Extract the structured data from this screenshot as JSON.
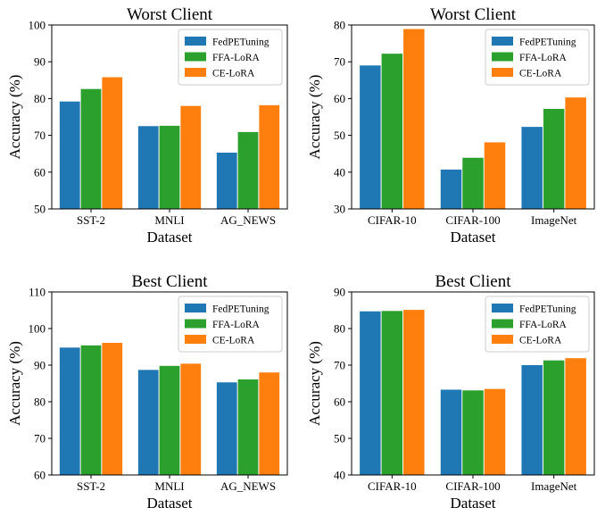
{
  "colors": {
    "FedPETuning": "#1f77b4",
    "FFA-LoRA": "#2ca02c",
    "CE-LoRA": "#ff7f0e"
  },
  "chart_data": [
    {
      "type": "bar",
      "title": "Worst Client",
      "xlabel": "Dataset",
      "ylabel": "Accuracy (%)",
      "categories": [
        "SST-2",
        "MNLI",
        "AG_NEWS"
      ],
      "ylim": [
        50,
        100
      ],
      "yticks": [
        50,
        60,
        70,
        80,
        90,
        100
      ],
      "legend": "top-right",
      "grid": false,
      "series": [
        {
          "name": "FedPETuning",
          "values": [
            79.2,
            72.5,
            65.3
          ]
        },
        {
          "name": "FFA-LoRA",
          "values": [
            82.6,
            72.6,
            70.9
          ]
        },
        {
          "name": "CE-LoRA",
          "values": [
            85.8,
            78.0,
            78.2
          ]
        }
      ]
    },
    {
      "type": "bar",
      "title": "Worst Client",
      "xlabel": "Dataset",
      "ylabel": "Accuracy (%)",
      "categories": [
        "CIFAR-10",
        "CIFAR-100",
        "ImageNet"
      ],
      "ylim": [
        30,
        80
      ],
      "yticks": [
        30,
        40,
        50,
        60,
        70,
        80
      ],
      "legend": "top-right",
      "grid": false,
      "series": [
        {
          "name": "FedPETuning",
          "values": [
            69.0,
            40.7,
            52.3
          ]
        },
        {
          "name": "FFA-LoRA",
          "values": [
            72.2,
            43.9,
            57.2
          ]
        },
        {
          "name": "CE-LoRA",
          "values": [
            78.9,
            48.1,
            60.3
          ]
        }
      ]
    },
    {
      "type": "bar",
      "title": "Best Client",
      "xlabel": "Dataset",
      "ylabel": "Accuracy (%)",
      "categories": [
        "SST-2",
        "MNLI",
        "AG_NEWS"
      ],
      "ylim": [
        60,
        110
      ],
      "yticks": [
        60,
        70,
        80,
        90,
        100,
        110
      ],
      "legend": "top-right",
      "grid": false,
      "series": [
        {
          "name": "FedPETuning",
          "values": [
            94.8,
            88.7,
            85.3
          ]
        },
        {
          "name": "FFA-LoRA",
          "values": [
            95.4,
            89.8,
            86.1
          ]
        },
        {
          "name": "CE-LoRA",
          "values": [
            96.1,
            90.4,
            88.0
          ]
        }
      ]
    },
    {
      "type": "bar",
      "title": "Best Client",
      "xlabel": "Dataset",
      "ylabel": "Accuracy (%)",
      "categories": [
        "CIFAR-10",
        "CIFAR-100",
        "ImageNet"
      ],
      "ylim": [
        40,
        90
      ],
      "yticks": [
        40,
        50,
        60,
        70,
        80,
        90
      ],
      "legend": "top-right",
      "grid": false,
      "series": [
        {
          "name": "FedPETuning",
          "values": [
            84.7,
            63.3,
            70.0
          ]
        },
        {
          "name": "FFA-LoRA",
          "values": [
            84.8,
            63.1,
            71.3
          ]
        },
        {
          "name": "CE-LoRA",
          "values": [
            85.1,
            63.5,
            71.9
          ]
        }
      ]
    }
  ]
}
